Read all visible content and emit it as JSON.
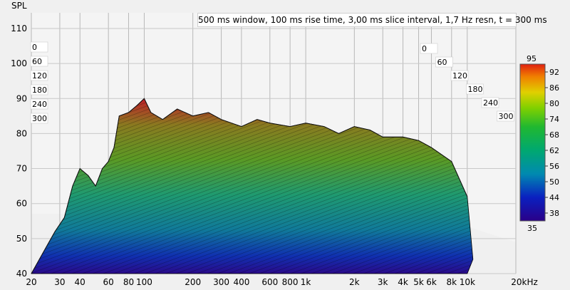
{
  "chart_data": {
    "type": "waterfall",
    "title": "500 ms window, 100 ms rise time, 3,00 ms slice interval, 1,7 Hz resn, t = 300 ms",
    "ylabel": "SPL",
    "xunit_label": "20kHz",
    "ylim": [
      40,
      110
    ],
    "y_ticks": [
      40,
      50,
      60,
      70,
      80,
      90,
      100,
      110
    ],
    "x_scale": "log",
    "x_ticks": [
      {
        "value": 20,
        "label": "20"
      },
      {
        "value": 30,
        "label": "30"
      },
      {
        "value": 40,
        "label": "40"
      },
      {
        "value": 60,
        "label": "60"
      },
      {
        "value": 80,
        "label": "80"
      },
      {
        "value": 100,
        "label": "100"
      },
      {
        "value": 200,
        "label": "200"
      },
      {
        "value": 300,
        "label": "300"
      },
      {
        "value": 400,
        "label": "400"
      },
      {
        "value": 600,
        "label": "600"
      },
      {
        "value": 800,
        "label": "800"
      },
      {
        "value": 1000,
        "label": "1k"
      },
      {
        "value": 2000,
        "label": "2k"
      },
      {
        "value": 3000,
        "label": "3k"
      },
      {
        "value": 4000,
        "label": "4k"
      },
      {
        "value": 5000,
        "label": "5k"
      },
      {
        "value": 6000,
        "label": "6k"
      },
      {
        "value": 8000,
        "label": "8k"
      },
      {
        "value": 10000,
        "label": "10k"
      },
      {
        "value": 20000,
        "label": "20kHz"
      }
    ],
    "time_slices_left": [
      "0",
      "60",
      "120",
      "180",
      "240",
      "300"
    ],
    "time_slices_right": [
      "0",
      "60",
      "120",
      "180",
      "240",
      "300"
    ],
    "colorbar": {
      "min_label": "35",
      "max_label": "95",
      "ticks": [
        38,
        44,
        50,
        56,
        62,
        68,
        74,
        80,
        86,
        92
      ]
    },
    "front_envelope": {
      "freq": [
        20,
        25,
        28,
        32,
        36,
        40,
        45,
        50,
        55,
        60,
        65,
        70,
        80,
        90,
        100,
        110,
        130,
        160,
        200,
        250,
        300,
        400,
        500,
        600,
        800,
        1000,
        1300,
        1600,
        2000,
        2500,
        3000,
        4000,
        5000,
        6000,
        8000,
        10000
      ],
      "spl": [
        40,
        48,
        52,
        56,
        65,
        70,
        68,
        65,
        70,
        72,
        76,
        85,
        86,
        88,
        90,
        86,
        84,
        87,
        85,
        86,
        84,
        82,
        84,
        83,
        82,
        83,
        82,
        80,
        82,
        81,
        79,
        79,
        78,
        76,
        72,
        62
      ]
    },
    "grid": true
  }
}
